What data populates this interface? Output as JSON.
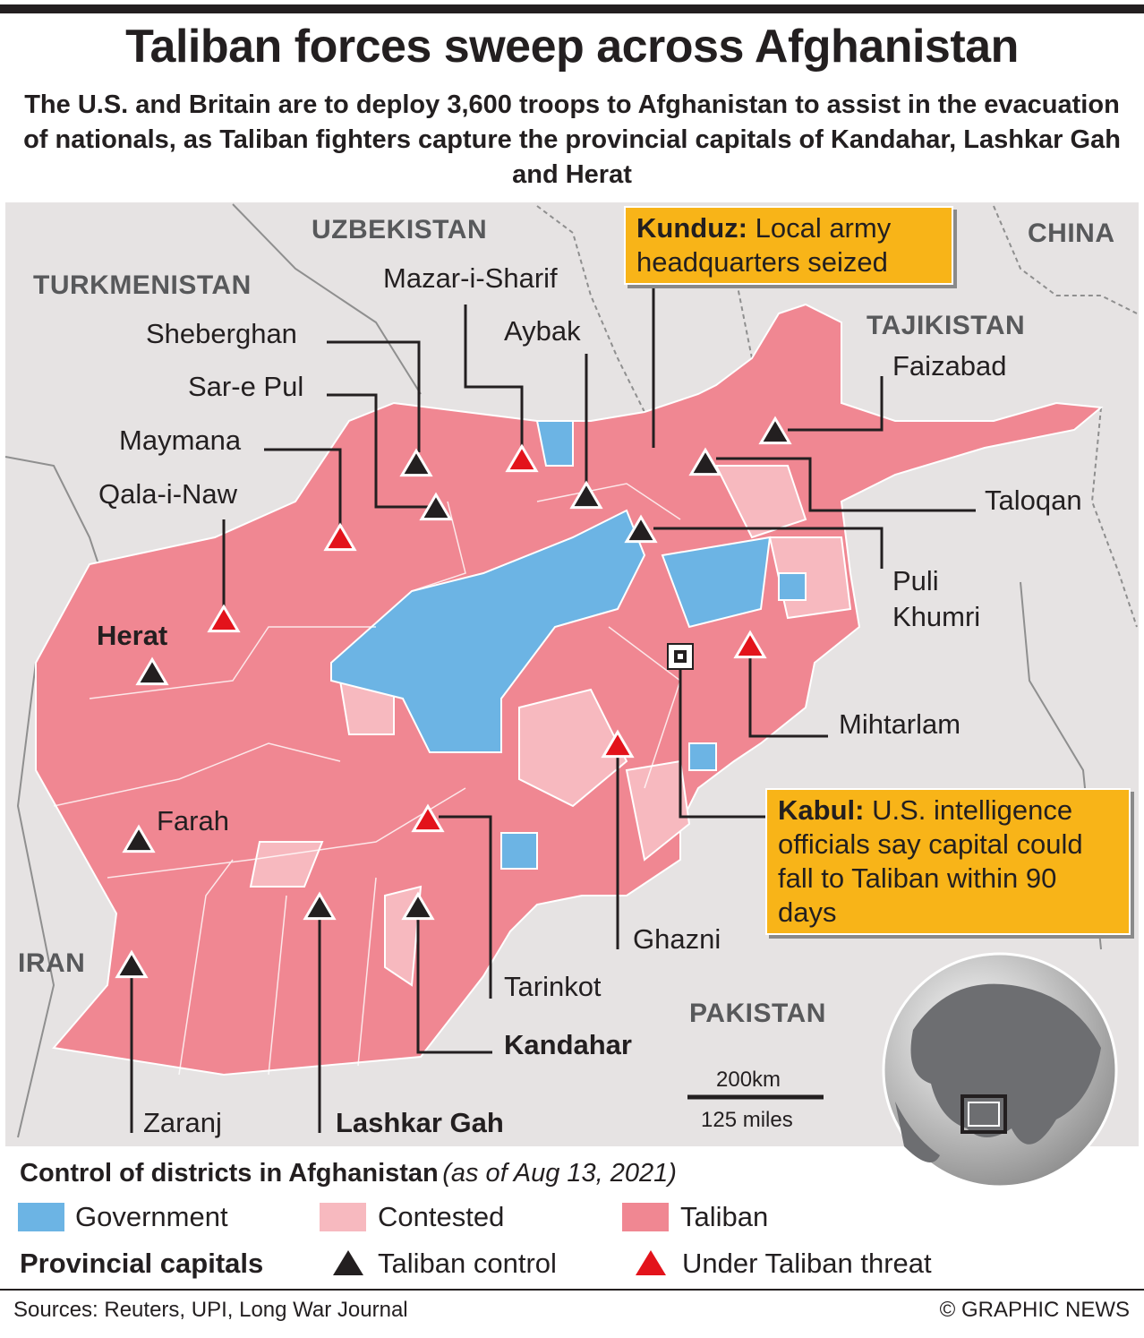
{
  "header": {
    "title": "Taliban forces sweep across Afghanistan",
    "subtitle": "The U.S. and Britain are to deploy 3,600 troops to Afghanistan to assist in the evacuation of nationals, as Taliban fighters capture the provincial capitals of Kandahar, Lashkar Gah and Herat"
  },
  "map": {
    "countries": [
      "UZBEKISTAN",
      "TURKMENISTAN",
      "CHINA",
      "TAJIKISTAN",
      "IRAN",
      "PAKISTAN"
    ],
    "cities": [
      {
        "name": "Sheberghan",
        "color": "#231f20"
      },
      {
        "name": "Mazar-i-Sharif",
        "color": "#e3131b"
      },
      {
        "name": "Aybak",
        "color": "#231f20"
      },
      {
        "name": "Sar-e Pul",
        "color": "#231f20"
      },
      {
        "name": "Maymana",
        "color": "#e3131b"
      },
      {
        "name": "Qala-i-Naw",
        "color": "#e3131b"
      },
      {
        "name": "Herat",
        "color": "#231f20"
      },
      {
        "name": "Taloqan",
        "color": "#231f20"
      },
      {
        "name": "Faizabad",
        "color": "#231f20"
      },
      {
        "name": "Puli Khumri",
        "color": "#231f20"
      },
      {
        "name": "Mihtarlam",
        "color": "#e3131b"
      },
      {
        "name": "Ghazni",
        "color": "#e3131b"
      },
      {
        "name": "Farah",
        "color": "#231f20"
      },
      {
        "name": "Tarinkot",
        "color": "#e3131b"
      },
      {
        "name": "Kandahar",
        "color": "#231f20"
      },
      {
        "name": "Lashkar Gah",
        "color": "#231f20"
      },
      {
        "name": "Zaranj",
        "color": "#231f20"
      }
    ],
    "callouts": [
      {
        "label": "Kunduz:",
        "text": "Local army headquarters seized"
      },
      {
        "label": "Kabul:",
        "text": "U.S. intelligence officials say capital could fall to Taliban within 90 days"
      }
    ],
    "scale": [
      "200km",
      "125 miles"
    ]
  },
  "legend": {
    "title": "Control of districts in Afghanistan",
    "date": "(as of Aug 13, 2021)",
    "districts": [
      {
        "name": "Government",
        "color": "#6cb4e4"
      },
      {
        "name": "Contested",
        "color": "#f7b9bf"
      },
      {
        "name": "Taliban",
        "color": "#f08792"
      }
    ],
    "capitals_title": "Provincial capitals",
    "capitals": [
      {
        "name": "Taliban control",
        "color": "#231f20"
      },
      {
        "name": "Under Taliban threat",
        "color": "#e3131b"
      }
    ]
  },
  "footer": {
    "sources": "Sources: Reuters, UPI, Long War Journal",
    "credit": "© GRAPHIC NEWS"
  }
}
